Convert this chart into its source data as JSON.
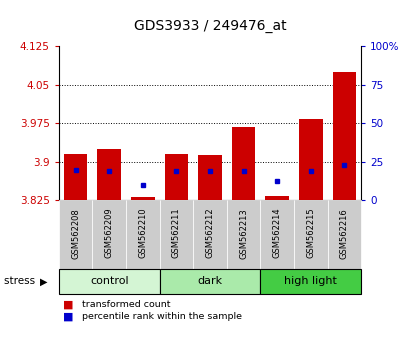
{
  "title": "GDS3933 / 249476_at",
  "samples": [
    "GSM562208",
    "GSM562209",
    "GSM562210",
    "GSM562211",
    "GSM562212",
    "GSM562213",
    "GSM562214",
    "GSM562215",
    "GSM562216"
  ],
  "groups": [
    {
      "name": "control",
      "color": "#d4f5d4",
      "samples": [
        0,
        1,
        2
      ]
    },
    {
      "name": "dark",
      "color": "#aaeaaa",
      "samples": [
        3,
        4,
        5
      ]
    },
    {
      "name": "high light",
      "color": "#44cc44",
      "samples": [
        6,
        7,
        8
      ]
    }
  ],
  "bar_values": [
    3.915,
    3.925,
    3.83,
    3.915,
    3.912,
    3.968,
    3.832,
    3.982,
    4.075
  ],
  "blue_values": [
    3.883,
    3.882,
    3.855,
    3.881,
    3.882,
    3.882,
    3.862,
    3.882,
    3.893
  ],
  "ymin": 3.825,
  "ymax": 4.125,
  "yticks": [
    3.825,
    3.9,
    3.975,
    4.05,
    4.125
  ],
  "ytick_labels": [
    "3.825",
    "3.9",
    "3.975",
    "4.05",
    "4.125"
  ],
  "right_yticks": [
    0,
    25,
    50,
    75,
    100
  ],
  "right_ytick_labels": [
    "0",
    "25",
    "50",
    "75",
    "100%"
  ],
  "bar_color": "#cc0000",
  "blue_color": "#0000cc",
  "sample_bg_color": "#cccccc",
  "bar_width": 0.7
}
